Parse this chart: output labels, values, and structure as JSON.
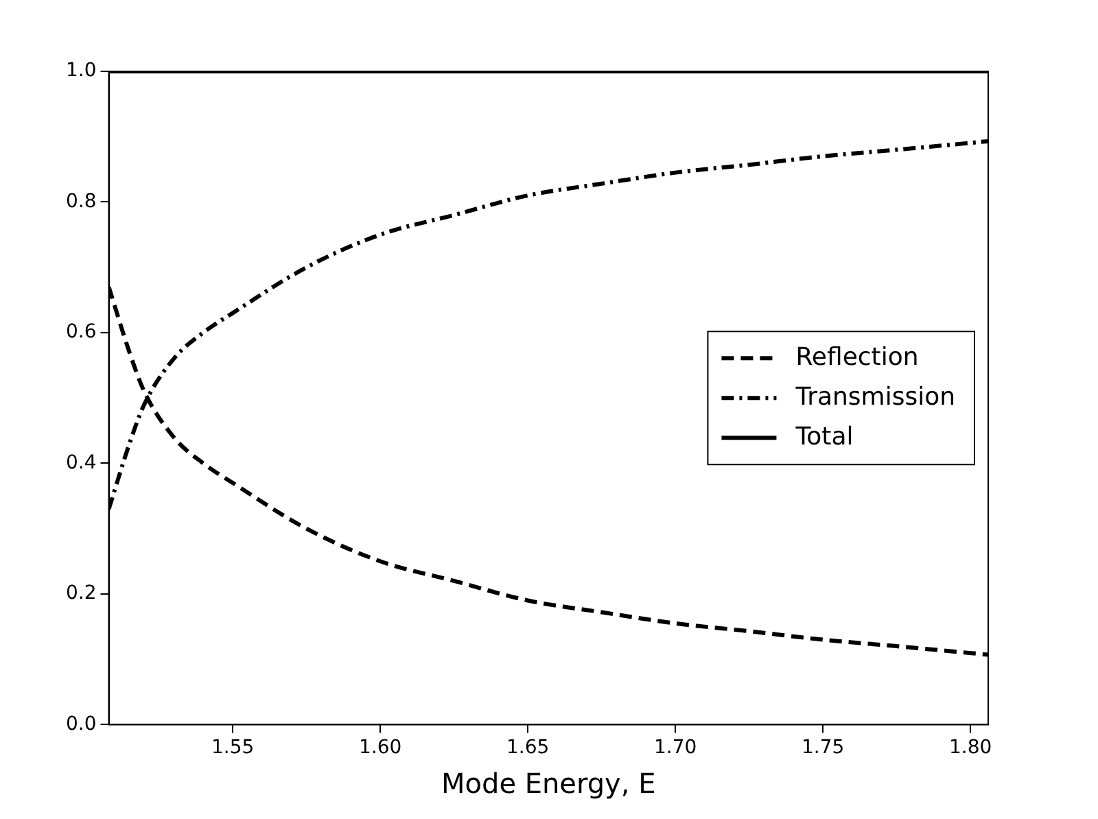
{
  "chart_data": {
    "type": "line",
    "xlabel": "Mode Energy, E",
    "x": [
      1.508,
      1.515,
      1.52,
      1.53,
      1.54,
      1.55,
      1.575,
      1.6,
      1.625,
      1.65,
      1.675,
      1.7,
      1.725,
      1.75,
      1.775,
      1.806
    ],
    "series": [
      {
        "name": "Reflection",
        "color": "#000000",
        "line_style": "dashed",
        "values": [
          0.67,
          0.57,
          0.51,
          0.44,
          0.4,
          0.37,
          0.3,
          0.25,
          0.22,
          0.19,
          0.172,
          0.155,
          0.143,
          0.13,
          0.12,
          0.107
        ]
      },
      {
        "name": "Transmission",
        "color": "#000000",
        "line_style": "dashdot",
        "values": [
          0.33,
          0.43,
          0.49,
          0.56,
          0.6,
          0.63,
          0.7,
          0.75,
          0.78,
          0.81,
          0.828,
          0.845,
          0.857,
          0.87,
          0.88,
          0.893
        ]
      },
      {
        "name": "Total",
        "color": "#000000",
        "line_style": "solid",
        "x": [
          1.508,
          1.806
        ],
        "values": [
          1.0,
          1.0
        ]
      }
    ],
    "xlim": [
      1.508,
      1.806
    ],
    "xticks": [
      1.55,
      {
        "value": 1.6,
        "label": "1.60"
      },
      1.65,
      {
        "value": 1.7,
        "label": "1.70"
      },
      1.75,
      {
        "value": 1.8,
        "label": "1.80"
      }
    ],
    "ylim": [
      0,
      1
    ],
    "yticks": [
      {
        "value": 0,
        "label": "0.0"
      },
      0.2,
      0.4,
      0.6,
      0.8,
      {
        "value": 1,
        "label": "1.0"
      }
    ],
    "legend": "right",
    "marker": "none",
    "grid": false
  }
}
